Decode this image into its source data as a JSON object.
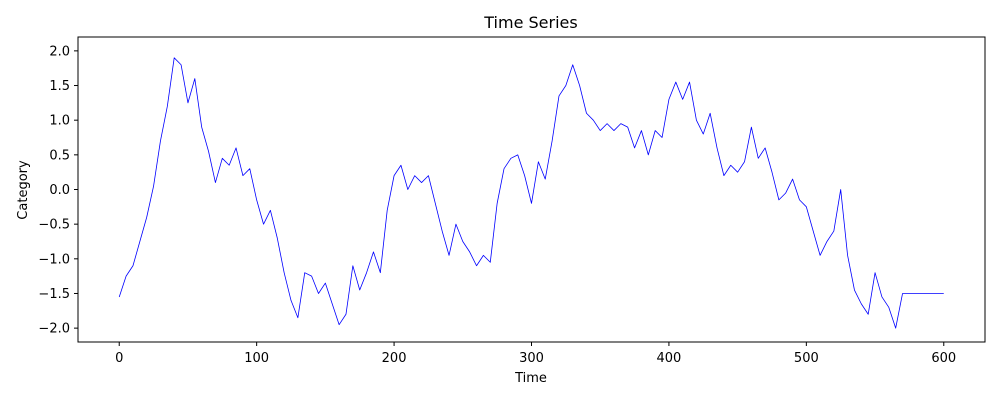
{
  "chart_data": {
    "type": "line",
    "title": "Time Series",
    "xlabel": "Time",
    "ylabel": "Category",
    "xlim": [
      -30,
      630
    ],
    "ylim": [
      -2.2,
      2.2
    ],
    "xticks": [
      0,
      100,
      200,
      300,
      400,
      500,
      600
    ],
    "yticks": [
      -2.0,
      -1.5,
      -1.0,
      -0.5,
      0.0,
      0.5,
      1.0,
      1.5,
      2.0
    ],
    "grid": false,
    "legend": "none",
    "series_color": "#0000ff",
    "series": [
      {
        "x": [
          0,
          5,
          10,
          15,
          20,
          25,
          30,
          35,
          40,
          45,
          50,
          55,
          60,
          65,
          70,
          75,
          80,
          85,
          90,
          95,
          100,
          105,
          110,
          115,
          120,
          125,
          130,
          135,
          140,
          145,
          150,
          155,
          160,
          165,
          170,
          175,
          180,
          185,
          190,
          195,
          200,
          205,
          210,
          215,
          220,
          225,
          230,
          235,
          240,
          245,
          250,
          255,
          260,
          265,
          270,
          275,
          280,
          285,
          290,
          295,
          300,
          305,
          310,
          315,
          320,
          325,
          330,
          335,
          340,
          345,
          350,
          355,
          360,
          365,
          370,
          375,
          380,
          385,
          390,
          395,
          400,
          405,
          410,
          415,
          420,
          425,
          430,
          435,
          440,
          445,
          450,
          455,
          460,
          465,
          470,
          475,
          480,
          485,
          490,
          495,
          500,
          505,
          510,
          515,
          520,
          525,
          530,
          535,
          540,
          545,
          550,
          555,
          560,
          565,
          570,
          575,
          580,
          585,
          590,
          595,
          600
        ],
        "values": [
          -1.55,
          -1.25,
          -1.1,
          -0.75,
          -0.4,
          0.05,
          0.7,
          1.2,
          1.9,
          1.8,
          1.25,
          1.6,
          0.9,
          0.55,
          0.1,
          0.45,
          0.35,
          0.6,
          0.2,
          0.3,
          -0.15,
          -0.5,
          -0.3,
          -0.7,
          -1.2,
          -1.6,
          -1.85,
          -1.2,
          -1.25,
          -1.5,
          -1.35,
          -1.65,
          -1.95,
          -1.8,
          -1.1,
          -1.45,
          -1.2,
          -0.9,
          -1.2,
          -0.3,
          0.2,
          0.35,
          0.0,
          0.2,
          0.1,
          0.2,
          -0.2,
          -0.6,
          -0.95,
          -0.5,
          -0.75,
          -0.9,
          -1.1,
          -0.95,
          -1.05,
          -0.2,
          0.3,
          0.45,
          0.5,
          0.2,
          -0.2,
          0.4,
          0.15,
          0.7,
          1.35,
          1.5,
          1.8,
          1.5,
          1.1,
          1.0,
          0.85,
          0.95,
          0.85,
          0.95,
          0.9,
          0.6,
          0.85,
          0.5,
          0.85,
          0.75,
          1.3,
          1.55,
          1.3,
          1.55,
          1.0,
          0.8,
          1.1,
          0.6,
          0.2,
          0.35,
          0.25,
          0.4,
          0.9,
          0.45,
          0.6,
          0.25,
          -0.15,
          -0.05,
          0.15,
          -0.15,
          -0.25,
          -0.6,
          -0.95,
          -0.75,
          -0.6,
          0.0,
          -0.95,
          -1.45,
          -1.65,
          -1.8,
          -1.2,
          -1.55,
          -1.7,
          -2.0,
          -1.5,
          -1.5,
          -1.5,
          -1.5,
          -1.5,
          -1.5,
          -1.5
        ]
      }
    ]
  }
}
